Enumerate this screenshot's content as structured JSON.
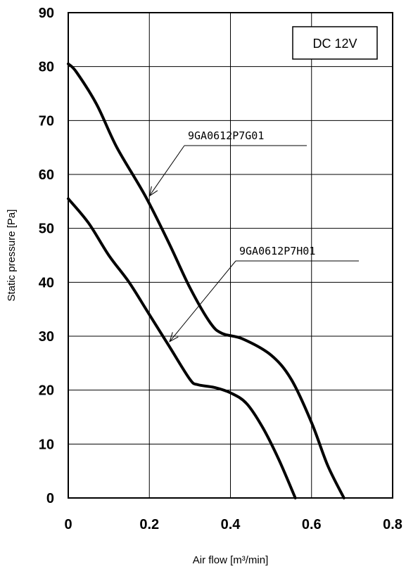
{
  "chart_data": {
    "type": "line",
    "title": "",
    "xlabel": "Air flow [m³/min]",
    "ylabel": "Static pressure [Pa]",
    "xlim": [
      0,
      0.8
    ],
    "ylim": [
      0,
      90
    ],
    "x_ticks": [
      0,
      0.2,
      0.4,
      0.6,
      0.8
    ],
    "x_tick_labels": [
      "0",
      "0.2",
      "0.4",
      "0.6",
      "0.8"
    ],
    "y_ticks": [
      0,
      10,
      20,
      30,
      40,
      50,
      60,
      70,
      80,
      90
    ],
    "y_tick_labels": [
      "0",
      "10",
      "20",
      "30",
      "40",
      "50",
      "60",
      "70",
      "80",
      "90"
    ],
    "grid": true,
    "legend_box": "DC 12V",
    "series": [
      {
        "name": "9GA0612P7G01",
        "points": [
          [
            0,
            80.5
          ],
          [
            0.02,
            79
          ],
          [
            0.07,
            73
          ],
          [
            0.12,
            65
          ],
          [
            0.19,
            56
          ],
          [
            0.25,
            47
          ],
          [
            0.3,
            39
          ],
          [
            0.35,
            32.5
          ],
          [
            0.38,
            30.5
          ],
          [
            0.43,
            29.5
          ],
          [
            0.5,
            26.5
          ],
          [
            0.55,
            22
          ],
          [
            0.6,
            14
          ],
          [
            0.64,
            6
          ],
          [
            0.68,
            0
          ]
        ]
      },
      {
        "name": "9GA0612P7H01",
        "points": [
          [
            0,
            55.5
          ],
          [
            0.05,
            51
          ],
          [
            0.1,
            45
          ],
          [
            0.15,
            40
          ],
          [
            0.2,
            34
          ],
          [
            0.25,
            28
          ],
          [
            0.3,
            22
          ],
          [
            0.32,
            21
          ],
          [
            0.36,
            20.5
          ],
          [
            0.4,
            19.5
          ],
          [
            0.44,
            17.5
          ],
          [
            0.48,
            13
          ],
          [
            0.52,
            7
          ],
          [
            0.56,
            0
          ]
        ]
      }
    ],
    "annotations": [
      {
        "text": "9GA0612P7G01",
        "points_to": [
          0.2,
          56
        ]
      },
      {
        "text": "9GA0612P7H01",
        "points_to": [
          0.25,
          29
        ]
      }
    ]
  }
}
